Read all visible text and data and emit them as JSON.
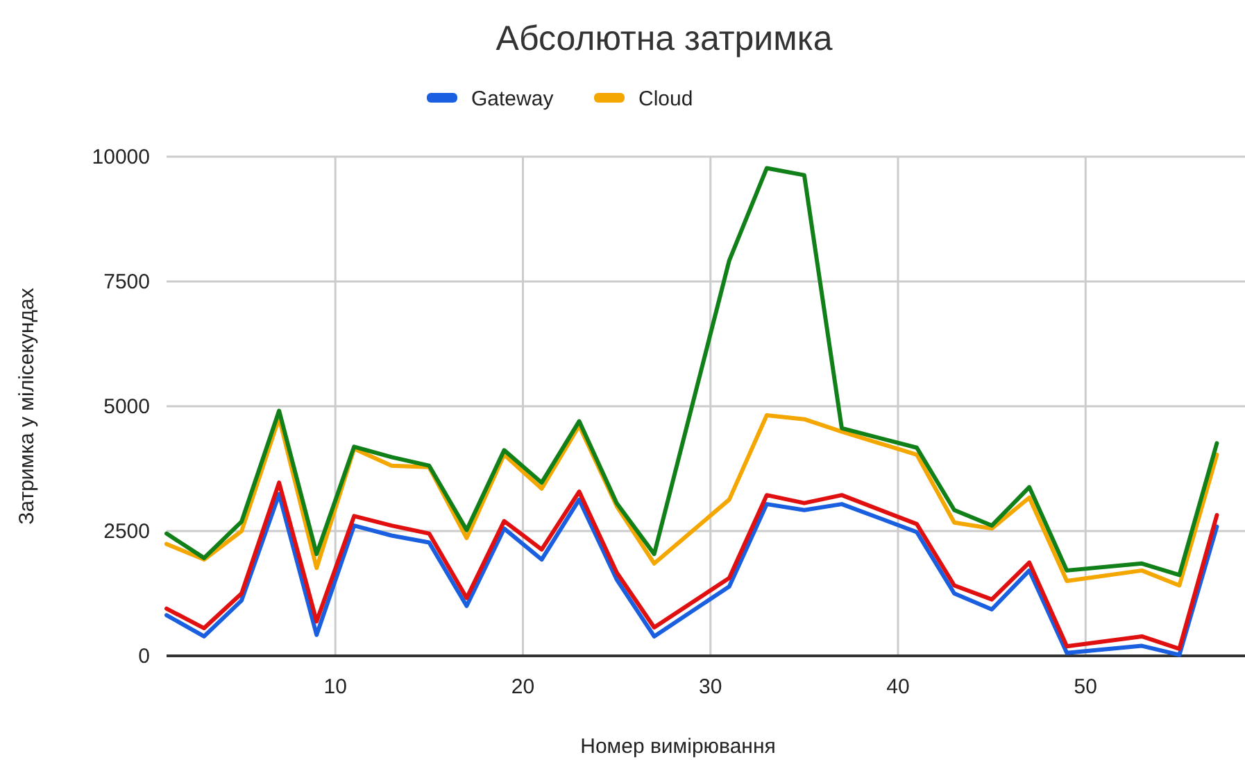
{
  "chart_data": {
    "type": "line",
    "title": "Абсолютна затримка",
    "xlabel": "Номер вимірювання",
    "ylabel": "Затримка у мілісекундах",
    "x": [
      1,
      3,
      5,
      7,
      9,
      11,
      13,
      15,
      17,
      19,
      21,
      23,
      25,
      27,
      31,
      33,
      35,
      37,
      41,
      43,
      45,
      47,
      49,
      53,
      55,
      57
    ],
    "series": [
      {
        "name": "Gateway",
        "color": "#1a5fe0",
        "values": [
          815,
          390,
          1110,
          3240,
          420,
          2610,
          2410,
          2270,
          1000,
          2550,
          1930,
          3130,
          1530,
          390,
          1390,
          3040,
          2920,
          3040,
          2480,
          1250,
          930,
          1710,
          60,
          200,
          20,
          2590
        ]
      },
      {
        "color": "#e01010",
        "values": [
          945,
          555,
          1250,
          3470,
          690,
          2800,
          2610,
          2450,
          1160,
          2700,
          2130,
          3290,
          1670,
          570,
          1560,
          3220,
          3060,
          3220,
          2640,
          1410,
          1130,
          1870,
          190,
          390,
          140,
          2820
        ]
      },
      {
        "name": "Cloud",
        "color": "#f4a700",
        "values": [
          2240,
          1930,
          2500,
          4770,
          1760,
          4150,
          3810,
          3780,
          2360,
          4030,
          3350,
          4610,
          3000,
          1850,
          3130,
          4820,
          4740,
          4490,
          4030,
          2670,
          2550,
          3170,
          1500,
          1710,
          1410,
          4030
        ]
      },
      {
        "color": "#118019",
        "values": [
          2450,
          1960,
          2690,
          4910,
          2040,
          4190,
          3980,
          3810,
          2520,
          4120,
          3470,
          4700,
          3060,
          2040,
          7920,
          9770,
          9630,
          4560,
          4170,
          2920,
          2610,
          3380,
          1710,
          1850,
          1620,
          4260
        ]
      }
    ],
    "xlim": [
      1,
      58.5
    ],
    "xticks": [
      10,
      20,
      30,
      40,
      50
    ],
    "ylim": [
      0,
      10000
    ],
    "yticks": [
      0,
      2500,
      5000,
      7500,
      10000
    ],
    "grid": true,
    "legend": "top",
    "marker": "none",
    "line_style": "solid"
  }
}
